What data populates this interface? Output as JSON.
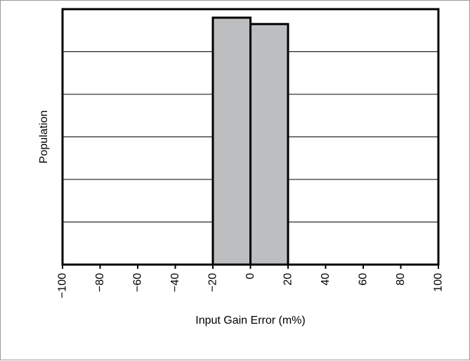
{
  "chart_data": {
    "type": "bar",
    "title": "",
    "xlabel": "Input Gain Error (m%)",
    "ylabel": "Population",
    "xlim": [
      -100,
      100
    ],
    "ylim": [
      0,
      6
    ],
    "x_ticks": [
      -100,
      -80,
      -60,
      -40,
      -20,
      0,
      20,
      40,
      60,
      80,
      100
    ],
    "x_tick_labels": [
      "−100",
      "−80",
      "−60",
      "−40",
      "−20",
      "0",
      "20",
      "40",
      "60",
      "80",
      "100"
    ],
    "bins": [
      {
        "x0": -20,
        "x1": 0,
        "value": 5.8
      },
      {
        "x0": 0,
        "x1": 20,
        "value": 5.65
      }
    ],
    "grid": {
      "horizontal": true,
      "vertical": false
    },
    "colors": {
      "bar_fill": "#bcbec0",
      "bar_stroke": "#000000",
      "grid": "#000000"
    }
  }
}
